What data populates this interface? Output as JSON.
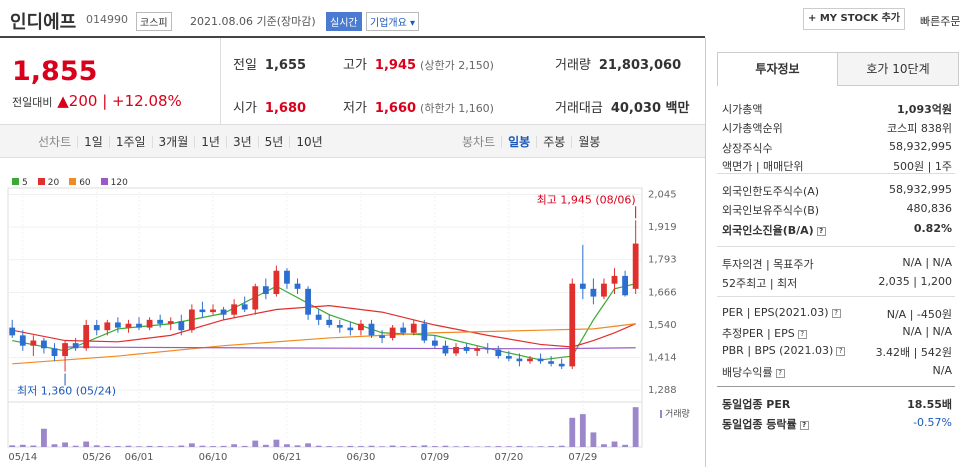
{
  "header": {
    "name": "인디에프",
    "code": "014990",
    "market": "코스피",
    "date": "2021.08.06 기준(장마감)",
    "realtime": "실시간",
    "overview": "기업개요",
    "mystock": "MY STOCK 추가",
    "order": "빠른주문"
  },
  "quote": {
    "price": "1,855",
    "change_label": "전일대비",
    "change": "200",
    "change_pct": "+12.08%",
    "fields": [
      {
        "label": "전일",
        "value": "1,655"
      },
      {
        "label": "고가",
        "value": "1,945",
        "note": "(상한가 2,150)"
      },
      {
        "label": "거래량",
        "value": "21,803,060"
      },
      {
        "label": "시가",
        "value": "1,680"
      },
      {
        "label": "저가",
        "value": "1,660",
        "note": "(하한가 1,160)"
      },
      {
        "label": "거래대금",
        "value": "40,030 백만"
      }
    ]
  },
  "period_tabs": {
    "line": [
      "선차트",
      "1일",
      "1주일",
      "3개월",
      "1년",
      "3년",
      "5년",
      "10년"
    ],
    "candle": [
      "봉차트",
      "일봉",
      "주봉",
      "월봉"
    ]
  },
  "chart_data": {
    "type": "candlestick",
    "volume_label": "거래량",
    "open": [
      1530,
      1500,
      1460,
      1480,
      1450,
      1420,
      1470,
      1450,
      1540,
      1520,
      1550,
      1530,
      1545,
      1530,
      1560,
      1545,
      1555,
      1520,
      1600,
      1590,
      1600,
      1580,
      1620,
      1600,
      1690,
      1660,
      1750,
      1700,
      1680,
      1580,
      1560,
      1540,
      1530,
      1520,
      1545,
      1500,
      1490,
      1530,
      1510,
      1545,
      1480,
      1460,
      1430,
      1455,
      1440,
      1450,
      1445,
      1420,
      1410,
      1400,
      1410,
      1400,
      1390,
      1380,
      1700,
      1680,
      1650,
      1700,
      1730,
      1680
    ],
    "high": [
      1560,
      1520,
      1500,
      1490,
      1470,
      1480,
      1490,
      1560,
      1560,
      1560,
      1570,
      1560,
      1570,
      1570,
      1580,
      1570,
      1580,
      1620,
      1630,
      1620,
      1610,
      1640,
      1650,
      1700,
      1720,
      1770,
      1760,
      1720,
      1690,
      1600,
      1580,
      1560,
      1550,
      1560,
      1560,
      1520,
      1540,
      1550,
      1560,
      1560,
      1500,
      1480,
      1470,
      1470,
      1460,
      1470,
      1460,
      1440,
      1430,
      1420,
      1430,
      1420,
      1410,
      1720,
      1850,
      1720,
      1720,
      1760,
      1750,
      1945
    ],
    "low": [
      1490,
      1440,
      1420,
      1430,
      1400,
      1360,
      1440,
      1440,
      1500,
      1500,
      1510,
      1510,
      1520,
      1520,
      1530,
      1520,
      1500,
      1510,
      1570,
      1580,
      1560,
      1570,
      1590,
      1580,
      1640,
      1650,
      1680,
      1660,
      1560,
      1540,
      1530,
      1510,
      1500,
      1500,
      1490,
      1470,
      1480,
      1500,
      1500,
      1470,
      1450,
      1420,
      1420,
      1430,
      1420,
      1430,
      1410,
      1400,
      1380,
      1390,
      1390,
      1380,
      1370,
      1370,
      1640,
      1620,
      1640,
      1660,
      1650,
      1660
    ],
    "close": [
      1500,
      1460,
      1480,
      1450,
      1420,
      1470,
      1450,
      1540,
      1520,
      1550,
      1530,
      1545,
      1530,
      1560,
      1545,
      1555,
      1520,
      1600,
      1590,
      1600,
      1580,
      1620,
      1600,
      1690,
      1660,
      1750,
      1700,
      1680,
      1580,
      1560,
      1540,
      1530,
      1520,
      1545,
      1500,
      1490,
      1530,
      1510,
      1545,
      1480,
      1460,
      1430,
      1455,
      1440,
      1450,
      1445,
      1420,
      1410,
      1400,
      1410,
      1400,
      1390,
      1380,
      1700,
      1680,
      1650,
      1700,
      1730,
      1655,
      1855
    ],
    "volume": [
      900000,
      1200000,
      800000,
      10000000,
      1500000,
      2500000,
      700000,
      3000000,
      900000,
      600000,
      500000,
      700000,
      400000,
      600000,
      500000,
      400000,
      800000,
      2000000,
      700000,
      500000,
      600000,
      1500000,
      600000,
      3500000,
      1200000,
      4000000,
      1500000,
      900000,
      2000000,
      700000,
      500000,
      400000,
      600000,
      500000,
      700000,
      400000,
      800000,
      500000,
      600000,
      900000,
      500000,
      700000,
      400000,
      500000,
      300000,
      400000,
      500000,
      400000,
      600000,
      300000,
      400000,
      500000,
      700000,
      16000000,
      18000000,
      8000000,
      1500000,
      3000000,
      1200000,
      21803060
    ],
    "volume_ylim": [
      0,
      23000000
    ],
    "ma": [
      {
        "name": "5",
        "color": "#3aaa35",
        "x": [
          0,
          5,
          10,
          15,
          20,
          25,
          30,
          35,
          40,
          45,
          50,
          53,
          55,
          57,
          59
        ],
        "values": [
          1480,
          1440,
          1525,
          1545,
          1585,
          1690,
          1580,
          1510,
          1500,
          1450,
          1405,
          1420,
          1560,
          1680,
          1700
        ]
      },
      {
        "name": "20",
        "color": "#e0302d",
        "x": [
          0,
          5,
          10,
          15,
          20,
          25,
          30,
          35,
          40,
          45,
          50,
          53,
          55,
          57,
          59
        ],
        "values": [
          1520,
          1480,
          1475,
          1500,
          1560,
          1600,
          1615,
          1590,
          1540,
          1500,
          1465,
          1455,
          1480,
          1510,
          1545
        ]
      },
      {
        "name": "60",
        "color": "#f08a24",
        "x": [
          0,
          10,
          20,
          30,
          40,
          50,
          55,
          59
        ],
        "values": [
          1390,
          1420,
          1460,
          1490,
          1510,
          1520,
          1525,
          1545
        ]
      },
      {
        "name": "120",
        "color": "#9b59c6",
        "x": [
          5,
          20,
          35,
          50,
          59
        ],
        "values": [
          1455,
          1452,
          1450,
          1448,
          1452
        ]
      }
    ],
    "xlim": [
      -0.4,
      59.6
    ],
    "ylim": [
      1250,
      2070
    ],
    "yticks": [
      {
        "value": 1288,
        "label": "1,288"
      },
      {
        "value": 1414,
        "label": "1,414"
      },
      {
        "value": 1540,
        "label": "1,540"
      },
      {
        "value": 1666,
        "label": "1,666"
      },
      {
        "value": 1793,
        "label": "1,793"
      },
      {
        "value": 1919,
        "label": "1,919"
      },
      {
        "value": 2045,
        "label": "2,045"
      }
    ],
    "xticks": [
      {
        "value": 1,
        "label": "05/14"
      },
      {
        "value": 8,
        "label": "05/26"
      },
      {
        "value": 12,
        "label": "06/01"
      },
      {
        "value": 19,
        "label": "06/10"
      },
      {
        "value": 26,
        "label": "06/21"
      },
      {
        "value": 33,
        "label": "06/30"
      },
      {
        "value": 40,
        "label": "07/09"
      },
      {
        "value": 47,
        "label": "07/20"
      },
      {
        "value": 54,
        "label": "07/29"
      }
    ],
    "annotations": [
      {
        "label": "최고 1,945 (08/06)",
        "x": 59
      },
      {
        "label": "최저 1,360 (05/24)",
        "x": 5
      }
    ]
  },
  "info": {
    "tabs": [
      "투자정보",
      "호가 10단계"
    ],
    "groups": [
      [
        {
          "label": "시가총액",
          "value": "1,093억원"
        },
        {
          "label": "시가총액순위",
          "value": "코스피 838위"
        },
        {
          "label": "상장주식수",
          "value": "58,932,995"
        },
        {
          "label": "액면가 | 매매단위",
          "value": "500원 | 1주"
        }
      ],
      [
        {
          "label": "외국인한도주식수(A)",
          "value": "58,932,995"
        },
        {
          "label": "외국인보유주식수(B)",
          "value": "480,836"
        },
        {
          "label": "외국인소진율(B/A)",
          "value": "0.82%",
          "help": true
        }
      ],
      [
        {
          "label": "투자의견 | 목표주가",
          "value": "N/A | N/A"
        },
        {
          "label": "52주최고 | 최저",
          "value": "2,035 | 1,200"
        }
      ],
      [
        {
          "label": "PER | EPS(2021.03)",
          "value": "N/A | -450원",
          "help": true
        },
        {
          "label": "추정PER | EPS",
          "value": "N/A | N/A",
          "help": true
        },
        {
          "label": "PBR | BPS (2021.03)",
          "value": "3.42배 | 542원",
          "help": true
        },
        {
          "label": "배당수익률",
          "value": "N/A",
          "help": true
        }
      ],
      [
        {
          "label": "동일업종 PER",
          "value": "18.55배"
        },
        {
          "label": "동일업종 등락률",
          "value": "-0.57%",
          "help": true
        }
      ]
    ]
  }
}
